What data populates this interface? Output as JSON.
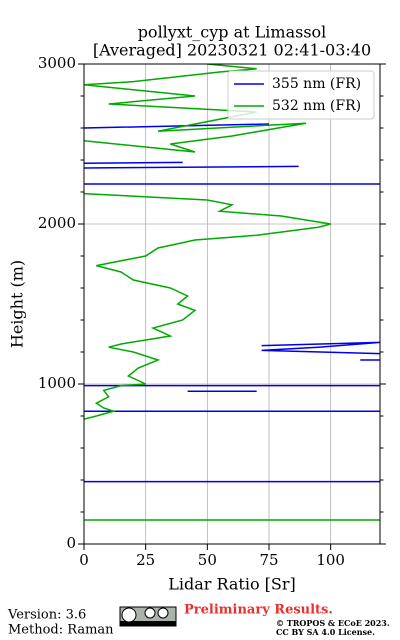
{
  "chart_data": {
    "type": "line",
    "title": "pollyxt_cyp at Limassol",
    "subtitle": "[Averaged] 20230321 02:41-03:40",
    "x_label": "Lidar Ratio [Sr]",
    "y_label": "Height (m)",
    "xlim": [
      0,
      120
    ],
    "ylim": [
      0,
      3000
    ],
    "xticks": [
      0,
      25,
      50,
      75,
      100
    ],
    "yticks": [
      0,
      1000,
      2000,
      3000
    ],
    "y_minor_ticks": [
      200,
      400,
      600,
      800,
      1200,
      1400,
      1600,
      1800,
      2200,
      2400,
      2600,
      2800
    ],
    "grid": true,
    "legend": "upper right",
    "series": [
      {
        "name": "355 nm (FR)",
        "color": "#0000ee",
        "x": [
          0,
          120,
          null,
          0,
          120,
          null,
          42,
          70,
          null,
          0,
          120,
          null,
          72,
          120,
          95,
          72,
          120,
          null,
          112,
          120,
          null,
          0,
          120,
          null,
          0,
          87,
          null,
          0,
          40,
          null,
          0,
          75
        ],
        "y": [
          390,
          390,
          null,
          830,
          830,
          null,
          955,
          955,
          null,
          990,
          990,
          null,
          1240,
          1260,
          1230,
          1210,
          1190,
          null,
          1150,
          1150,
          null,
          2250,
          2250,
          null,
          2350,
          2360,
          null,
          2380,
          2385,
          null,
          2600,
          2625
        ]
      },
      {
        "name": "532 nm (FR)",
        "color": "#00aa00",
        "x": [
          0,
          120,
          null,
          0,
          5,
          12,
          8,
          5,
          10,
          8,
          15,
          25,
          18,
          22,
          30,
          20,
          10,
          15,
          35,
          28,
          40,
          45,
          38,
          42,
          35,
          20,
          15,
          5,
          25,
          30,
          45,
          70,
          95,
          100,
          80,
          55,
          60,
          50,
          0,
          null,
          0,
          45,
          35,
          60,
          90,
          30,
          70,
          10,
          45,
          0,
          20,
          55,
          70,
          50
        ],
        "y": [
          150,
          150,
          null,
          780,
          800,
          830,
          850,
          880,
          920,
          960,
          990,
          1000,
          1050,
          1100,
          1150,
          1200,
          1230,
          1250,
          1300,
          1350,
          1400,
          1460,
          1500,
          1550,
          1600,
          1650,
          1700,
          1740,
          1800,
          1850,
          1900,
          1930,
          1980,
          2000,
          2050,
          2080,
          2120,
          2150,
          2190,
          null,
          2520,
          2450,
          2500,
          2550,
          2630,
          2580,
          2700,
          2750,
          2800,
          2870,
          2890,
          2950,
          2970,
          3000
        ]
      }
    ]
  },
  "footer": {
    "version": "Version: 3.6",
    "method": "Method: Raman",
    "notice": "Preliminary Results.",
    "copyright": "© TROPOS & ECoE 2023.",
    "license": "CC BY SA 4.0 License."
  }
}
